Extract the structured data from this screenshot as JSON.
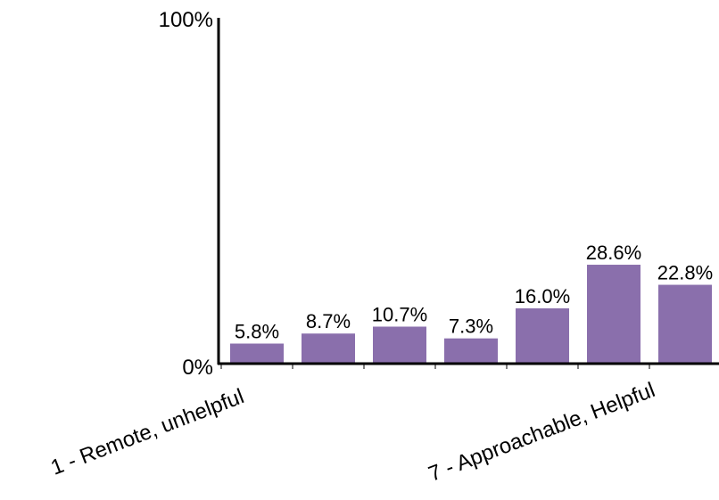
{
  "chart_data": {
    "type": "bar",
    "categories": [
      "1 - Remote, unhelpful",
      "",
      "",
      "",
      "",
      "",
      "7 - Approachable, Helpful"
    ],
    "values": [
      5.8,
      8.7,
      10.7,
      7.3,
      16.0,
      28.6,
      22.8
    ],
    "data_labels": [
      "5.8%",
      "8.7%",
      "10.7%",
      "7.3%",
      "16.0%",
      "28.6%",
      "22.8%"
    ],
    "y_tick_labels": [
      "0%",
      "100%"
    ],
    "ylim": [
      0,
      100
    ],
    "bar_color": "#8a6fac",
    "grid": false,
    "legend": "none"
  }
}
